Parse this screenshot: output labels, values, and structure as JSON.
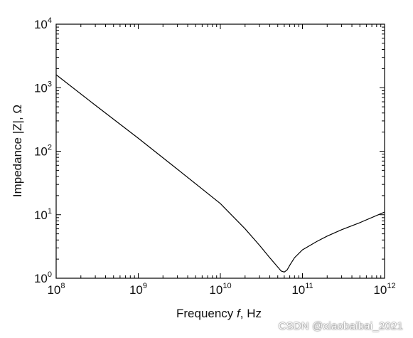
{
  "chart_data": {
    "type": "line",
    "xlabel_prefix": "Frequency ",
    "xlabel_var": "f",
    "xlabel_suffix": ", Hz",
    "ylabel": "Impedance |Z|, Ω",
    "xscale": "log",
    "yscale": "log",
    "xlim": [
      100000000,
      1000000000000
    ],
    "ylim": [
      1,
      10000
    ],
    "xticks": [
      {
        "base": "10",
        "exp": "8"
      },
      {
        "base": "10",
        "exp": "9"
      },
      {
        "base": "10",
        "exp": "10"
      },
      {
        "base": "10",
        "exp": "11"
      },
      {
        "base": "10",
        "exp": "12"
      }
    ],
    "yticks": [
      {
        "base": "10",
        "exp": "0"
      },
      {
        "base": "10",
        "exp": "1"
      },
      {
        "base": "10",
        "exp": "2"
      },
      {
        "base": "10",
        "exp": "3"
      },
      {
        "base": "10",
        "exp": "4"
      }
    ],
    "grid": false,
    "series": [
      {
        "color": "#000000",
        "x": [
          100000000,
          300000000,
          1000000000,
          3000000000,
          10000000000,
          20000000000,
          30000000000,
          40000000000,
          50000000000,
          55000000000,
          60000000000,
          65000000000,
          70000000000,
          80000000000,
          100000000000,
          150000000000,
          200000000000,
          300000000000,
          500000000000,
          1000000000000
        ],
        "y": [
          1600,
          530,
          160,
          52,
          15,
          6,
          3.3,
          2.1,
          1.5,
          1.3,
          1.25,
          1.35,
          1.6,
          2.1,
          2.8,
          3.8,
          4.6,
          5.8,
          7.5,
          11
        ]
      }
    ]
  },
  "watermark": "CSDN @xiaobaibai_2021"
}
